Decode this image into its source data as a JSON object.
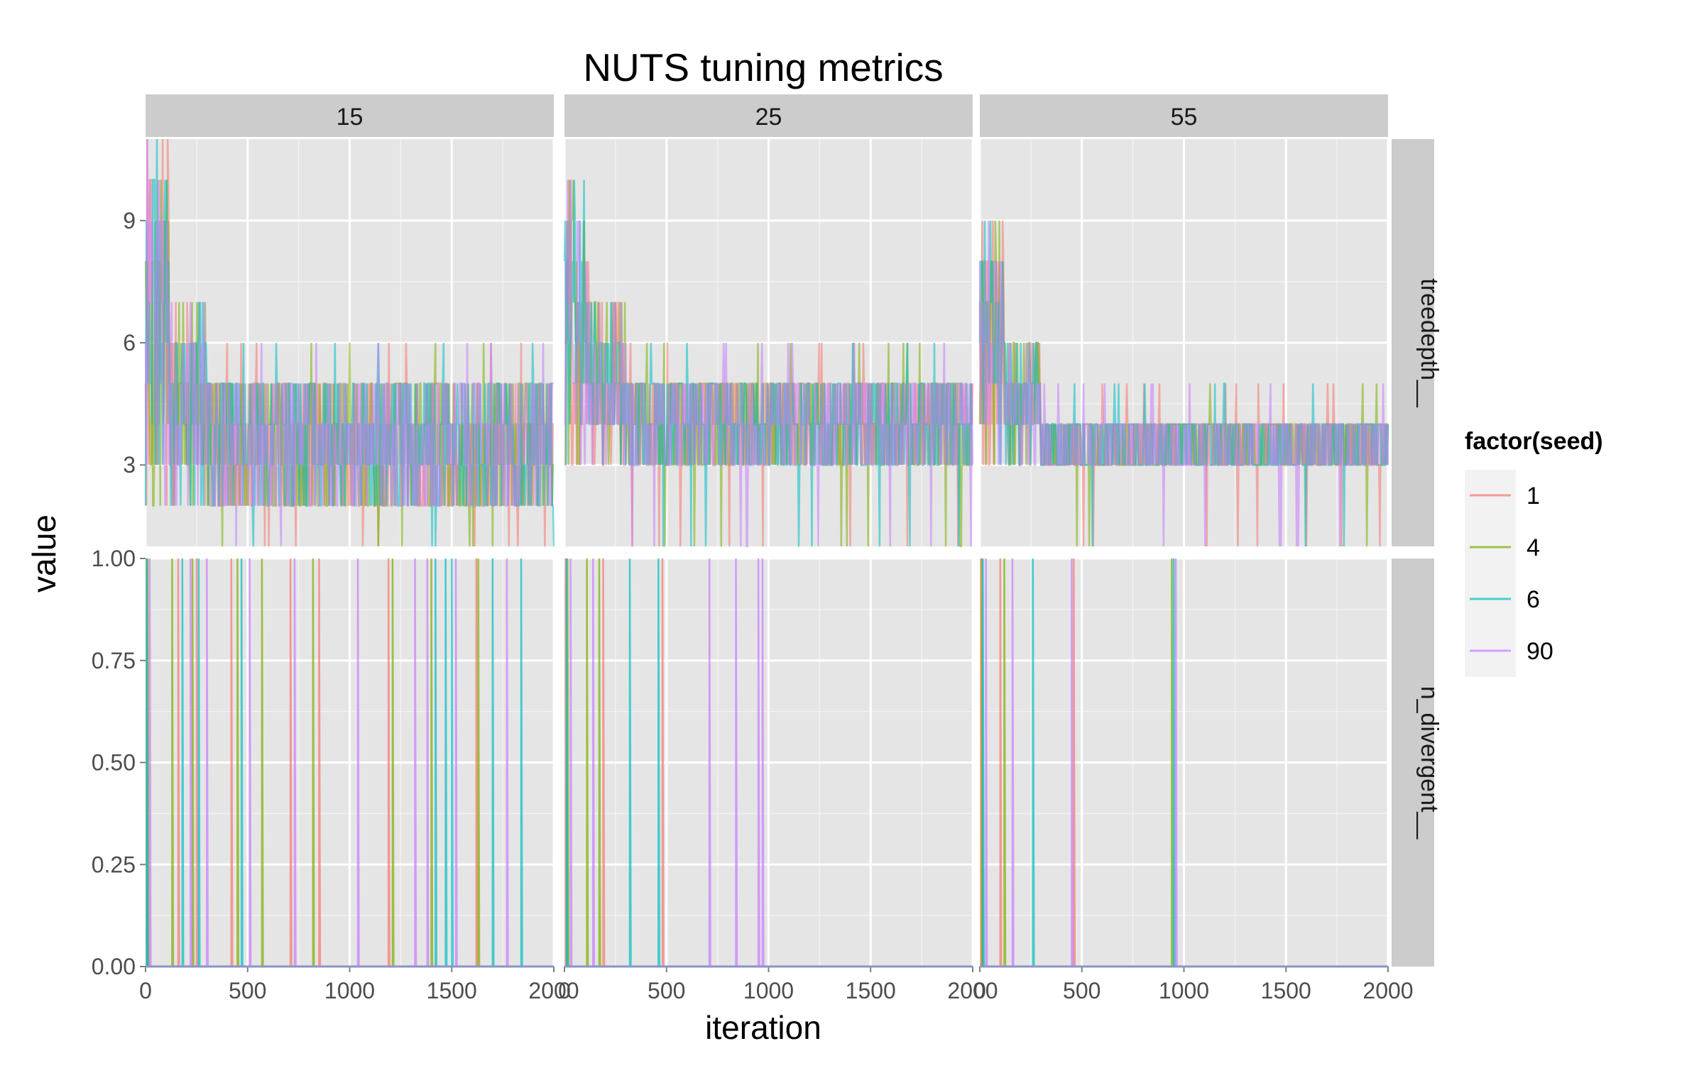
{
  "chart_data": {
    "type": "line",
    "title": "NUTS tuning metrics",
    "xlabel": "iteration",
    "ylabel": "value",
    "facet_columns": [
      "15",
      "25",
      "55"
    ],
    "facet_rows": [
      "treedepth__",
      "n_divergent__"
    ],
    "x_range": [
      0,
      2000
    ],
    "x_ticks": [
      0,
      500,
      1000,
      1500,
      2000
    ],
    "y_ranges": {
      "treedepth__": [
        1,
        11
      ],
      "n_divergent__": [
        0,
        1
      ]
    },
    "y_ticks": {
      "treedepth__": [
        "3",
        "6",
        "9"
      ],
      "n_divergent__": [
        "0.00",
        "0.25",
        "0.50",
        "0.75",
        "1.00"
      ]
    },
    "legend": {
      "title": "factor(seed)",
      "placement": "right",
      "entries": [
        {
          "name": "1",
          "color": "#F8766D"
        },
        {
          "name": "4",
          "color": "#7CAE00"
        },
        {
          "name": "6",
          "color": "#00BFC4"
        },
        {
          "name": "90",
          "color": "#C77CFF"
        }
      ]
    },
    "panels": [
      {
        "column": "15",
        "row": "treedepth__",
        "typical_range": [
          2,
          5
        ],
        "early_spikes_to": 11,
        "min_value": 1
      },
      {
        "column": "25",
        "row": "treedepth__",
        "typical_range": [
          3,
          5
        ],
        "early_spikes_to": 10,
        "min_value": 1
      },
      {
        "column": "55",
        "row": "treedepth__",
        "typical_range": [
          3,
          4
        ],
        "early_spikes_to": 9,
        "min_value": 1
      },
      {
        "column": "15",
        "row": "n_divergent__",
        "divergences": [
          {
            "seed": "1",
            "iterations": [
              5,
              160,
              250,
              420,
              710,
              850,
              1190,
              1620
            ]
          },
          {
            "seed": "4",
            "iterations": [
              10,
              130,
              230,
              450,
              570,
              820,
              1210,
              1400,
              1630
            ]
          },
          {
            "seed": "6",
            "iterations": [
              5,
              180,
              260,
              470,
              1420,
              1470,
              1500,
              1700,
              1840
            ]
          },
          {
            "seed": "90",
            "iterations": [
              20,
              220,
              300,
              510,
              730,
              1040,
              1320,
              1380,
              1520,
              1770
            ]
          }
        ]
      },
      {
        "column": "25",
        "row": "n_divergent__",
        "divergences": [
          {
            "seed": "1",
            "iterations": [
              5,
              190,
              480
            ]
          },
          {
            "seed": "4",
            "iterations": [
              15,
              110,
              170
            ]
          },
          {
            "seed": "6",
            "iterations": [
              10,
              320,
              460
            ]
          },
          {
            "seed": "90",
            "iterations": [
              30,
              140,
              710,
              840,
              950,
              970
            ]
          }
        ]
      },
      {
        "column": "55",
        "row": "n_divergent__",
        "divergences": [
          {
            "seed": "1",
            "iterations": [
              5,
              100,
              460
            ]
          },
          {
            "seed": "4",
            "iterations": [
              10,
              120,
              940
            ]
          },
          {
            "seed": "6",
            "iterations": [
              15,
              260,
              950
            ]
          },
          {
            "seed": "90",
            "iterations": [
              30,
              160,
              450,
              960
            ]
          }
        ]
      }
    ]
  }
}
